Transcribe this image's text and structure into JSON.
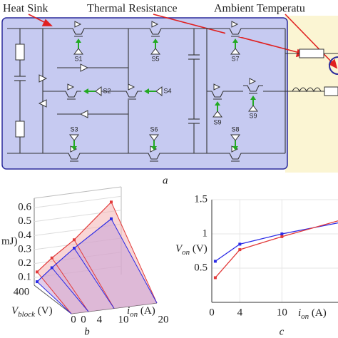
{
  "diagram": {
    "callouts": [
      "Heat Sink",
      "Thermal Resistance",
      "Ambient Temperatu"
    ],
    "switches": [
      "S1",
      "S5",
      "S7",
      "S9",
      "S2",
      "S4",
      "S9",
      "S3",
      "S6",
      "S8"
    ],
    "caption": "a"
  },
  "chart_data": [
    {
      "type": "line3d",
      "caption": "b",
      "ylabel": "mJ)",
      "x": [
        0,
        4,
        10,
        20
      ],
      "xticks": [
        0,
        4,
        10,
        20
      ],
      "xlabel": [
        "i",
        "on",
        " (A)"
      ],
      "zticks": [
        400,
        0
      ],
      "zlabel": [
        "V",
        "block",
        " (V)"
      ],
      "ylim": [
        0.05,
        0.65
      ],
      "yticks": [
        0.1,
        0.2,
        0.3,
        0.4,
        0.5,
        0.6
      ],
      "series": [
        {
          "color": "#e23a3a",
          "fill": "#f4b3b3",
          "values": [
            0.14,
            0.24,
            0.37,
            0.64
          ]
        },
        {
          "color": "#2a2ae6",
          "fill": "#c9a2d8",
          "values": [
            0.07,
            0.17,
            0.31,
            0.52
          ]
        }
      ]
    },
    {
      "type": "line",
      "caption": "c",
      "ylabel": [
        "V",
        "on",
        " (V)"
      ],
      "xlabel": [
        "i",
        "on",
        " (A)"
      ],
      "x": [
        0.5,
        4,
        10,
        18
      ],
      "xlim": [
        0,
        18
      ],
      "xticks": [
        0,
        4,
        10
      ],
      "ylim": [
        0,
        1.5
      ],
      "yticks": [
        0.5,
        1,
        1.5
      ],
      "grid": true,
      "series": [
        {
          "color": "#2a2ae6",
          "values": [
            0.6,
            0.85,
            1.0,
            1.16
          ]
        },
        {
          "color": "#e23a3a",
          "values": [
            0.36,
            0.77,
            0.96,
            1.19
          ]
        }
      ]
    }
  ]
}
